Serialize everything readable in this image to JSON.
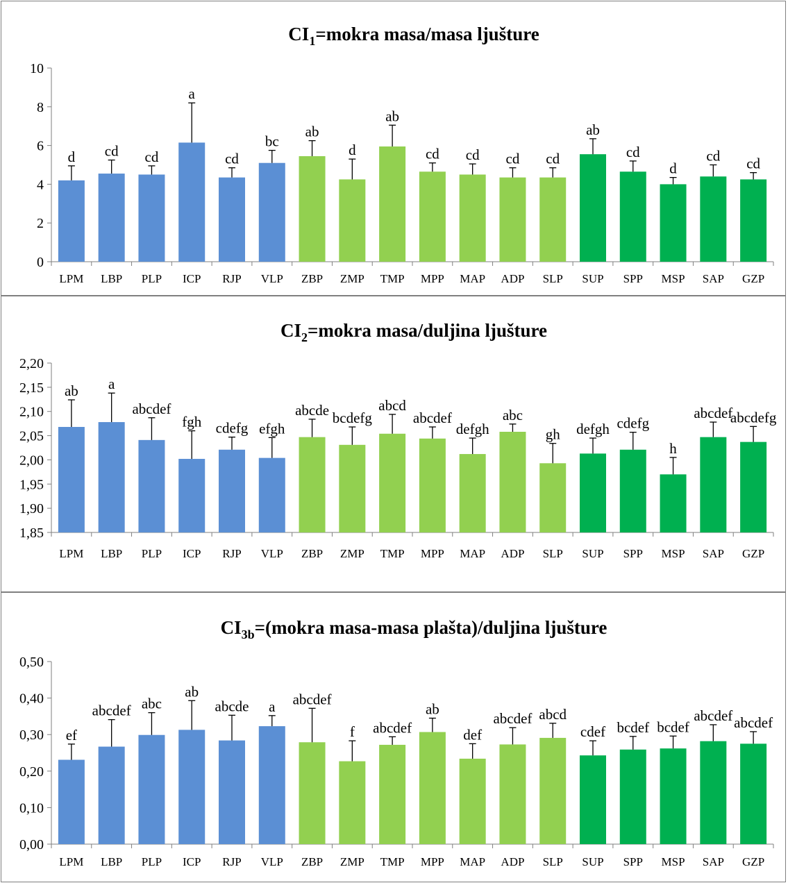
{
  "colors": {
    "group1": "#5b8fd4",
    "group2": "#92d050",
    "group3": "#00b050",
    "axis": "#7f7f7f",
    "error": "#000000"
  },
  "chart_data": [
    {
      "type": "bar",
      "title_main": "CI",
      "title_sub": "1",
      "title_rest": "=mokra masa/masa ljušture",
      "categories": [
        "LPM",
        "LBP",
        "PLP",
        "ICP",
        "RJP",
        "VLP",
        "ZBP",
        "ZMP",
        "TMP",
        "MPP",
        "MAP",
        "ADP",
        "SLP",
        "SUP",
        "SPP",
        "MSP",
        "SAP",
        "GZP"
      ],
      "values": [
        4.2,
        4.55,
        4.5,
        6.15,
        4.35,
        5.1,
        5.45,
        4.25,
        5.95,
        4.65,
        4.5,
        4.35,
        4.35,
        5.55,
        4.65,
        4.0,
        4.4,
        4.25
      ],
      "errors": [
        0.75,
        0.7,
        0.45,
        2.05,
        0.5,
        0.65,
        0.8,
        1.05,
        1.1,
        0.45,
        0.55,
        0.5,
        0.5,
        0.8,
        0.55,
        0.35,
        0.6,
        0.35
      ],
      "letters": [
        "d",
        "cd",
        "cd",
        "a",
        "cd",
        "bc",
        "ab",
        "d",
        "ab",
        "cd",
        "cd",
        "cd",
        "cd",
        "ab",
        "cd",
        "d",
        "cd",
        "cd"
      ],
      "groups": [
        1,
        1,
        1,
        1,
        1,
        1,
        2,
        2,
        2,
        2,
        2,
        2,
        2,
        3,
        3,
        3,
        3,
        3
      ],
      "ylim": [
        0,
        10
      ],
      "yticks": [
        "0",
        "2",
        "4",
        "6",
        "8",
        "10"
      ],
      "ytick_values": [
        0,
        2,
        4,
        6,
        8,
        10
      ]
    },
    {
      "type": "bar",
      "title_main": "CI",
      "title_sub": "2",
      "title_rest": "=mokra masa/duljina ljušture",
      "categories": [
        "LPM",
        "LBP",
        "PLP",
        "ICP",
        "RJP",
        "VLP",
        "ZBP",
        "ZMP",
        "TMP",
        "MPP",
        "MAP",
        "ADP",
        "SLP",
        "SUP",
        "SPP",
        "MSP",
        "SAP",
        "GZP"
      ],
      "values": [
        2.068,
        2.078,
        2.041,
        2.002,
        2.021,
        2.004,
        2.047,
        2.031,
        2.054,
        2.044,
        2.012,
        2.058,
        1.993,
        2.013,
        2.021,
        1.97,
        2.047,
        2.037
      ],
      "errors": [
        0.056,
        0.06,
        0.046,
        0.058,
        0.026,
        0.042,
        0.037,
        0.037,
        0.04,
        0.024,
        0.033,
        0.016,
        0.041,
        0.032,
        0.036,
        0.035,
        0.031,
        0.032
      ],
      "letters": [
        "ab",
        "a",
        "abcdef",
        "fgh",
        "cdefg",
        "efgh",
        "abcde",
        "bcdefg",
        "abcd",
        "abcdef",
        "defgh",
        "abc",
        "gh",
        "defgh",
        "cdefg",
        "h",
        "abcdef",
        "abcdefg"
      ],
      "groups": [
        1,
        1,
        1,
        1,
        1,
        1,
        2,
        2,
        2,
        2,
        2,
        2,
        2,
        3,
        3,
        3,
        3,
        3
      ],
      "ylim": [
        1.85,
        2.2
      ],
      "yticks": [
        "1,85",
        "1,90",
        "1,95",
        "2,00",
        "2,05",
        "2,10",
        "2,15",
        "2,20"
      ],
      "ytick_values": [
        1.85,
        1.9,
        1.95,
        2.0,
        2.05,
        2.1,
        2.15,
        2.2
      ]
    },
    {
      "type": "bar",
      "title_main": "CI",
      "title_sub": "3b",
      "title_rest": "=(mokra masa-masa plašta)/duljina ljušture",
      "categories": [
        "LPM",
        "LBP",
        "PLP",
        "ICP",
        "RJP",
        "VLP",
        "ZBP",
        "ZMP",
        "TMP",
        "MPP",
        "MAP",
        "ADP",
        "SLP",
        "SUP",
        "SPP",
        "MSP",
        "SAP",
        "GZP"
      ],
      "values": [
        0.231,
        0.267,
        0.299,
        0.313,
        0.284,
        0.323,
        0.279,
        0.227,
        0.272,
        0.307,
        0.234,
        0.273,
        0.291,
        0.243,
        0.259,
        0.262,
        0.282,
        0.275
      ],
      "errors": [
        0.043,
        0.074,
        0.061,
        0.08,
        0.069,
        0.029,
        0.093,
        0.056,
        0.022,
        0.038,
        0.041,
        0.046,
        0.04,
        0.04,
        0.036,
        0.034,
        0.045,
        0.033
      ],
      "letters": [
        "ef",
        "abcdef",
        "abc",
        "ab",
        "abcde",
        "a",
        "abcdef",
        "f",
        "abcdef",
        "ab",
        "def",
        "abcdef",
        "abcd",
        "cdef",
        "bcdef",
        "bcdef",
        "abcdef",
        "abcdef"
      ],
      "groups": [
        1,
        1,
        1,
        1,
        1,
        1,
        2,
        2,
        2,
        2,
        2,
        2,
        2,
        3,
        3,
        3,
        3,
        3
      ],
      "ylim": [
        0,
        0.5
      ],
      "yticks": [
        "0,00",
        "0,10",
        "0,20",
        "0,30",
        "0,40",
        "0,50"
      ],
      "ytick_values": [
        0,
        0.1,
        0.2,
        0.3,
        0.4,
        0.5
      ]
    }
  ]
}
